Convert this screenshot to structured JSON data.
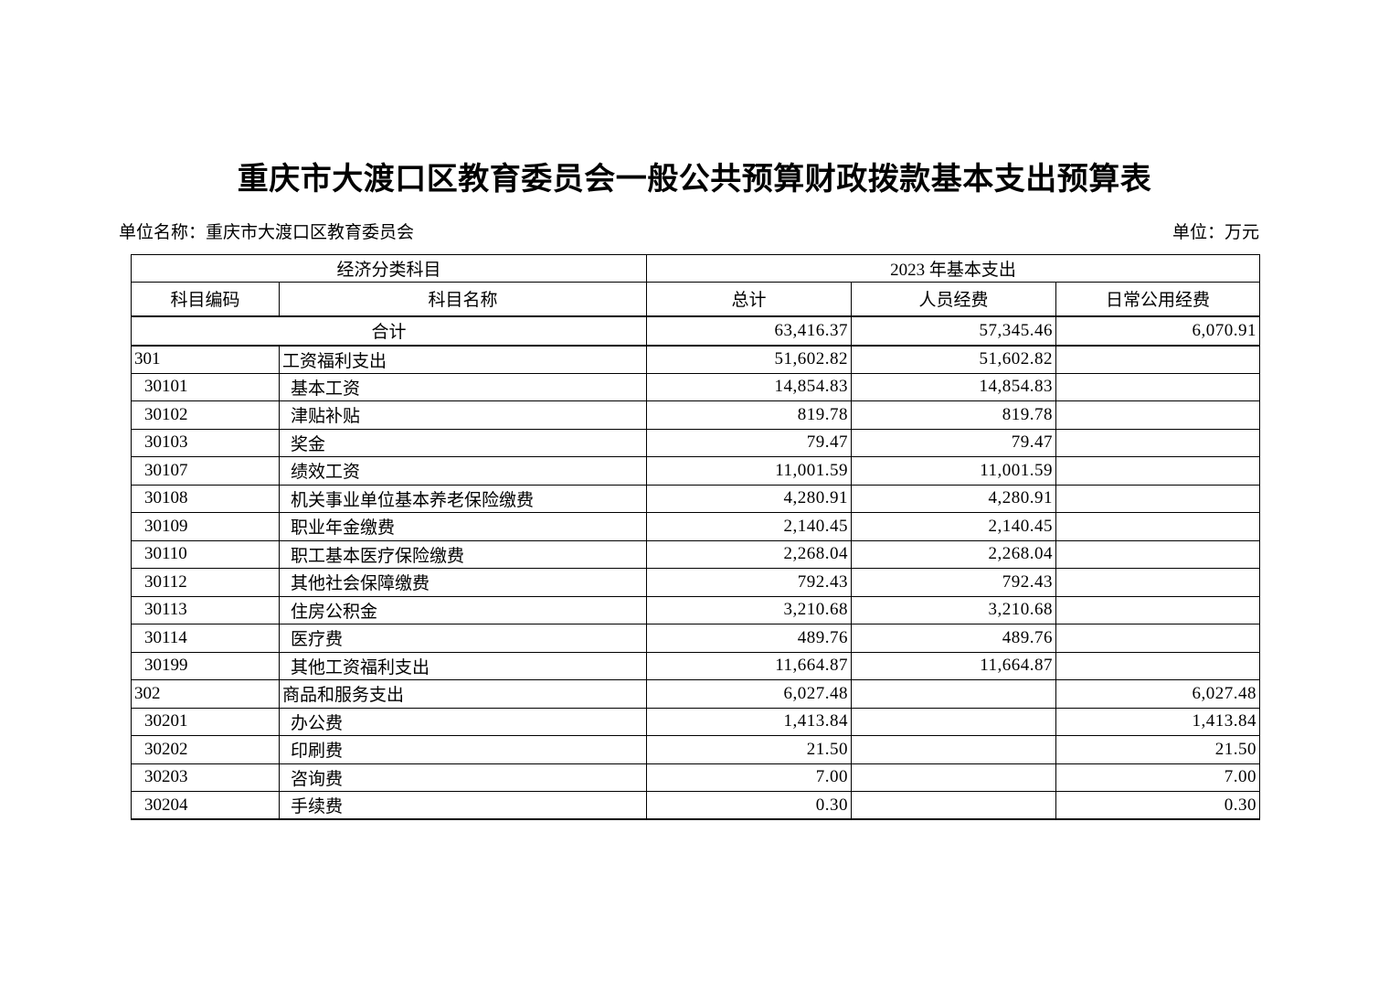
{
  "page": {
    "title": "重庆市大渡口区教育委员会一般公共预算财政拨款基本支出预算表",
    "unit_name_label": "单位名称：重庆市大渡口区教育委员会",
    "unit_label": "单位：万元"
  },
  "table": {
    "header": {
      "group_left": "经济分类科目",
      "group_right": "2023 年基本支出",
      "columns": [
        "科目编码",
        "科目名称",
        "总计",
        "人员经费",
        "日常公用经费"
      ]
    },
    "total_row": {
      "label": "合计",
      "total": "63,416.37",
      "personnel": "57,345.46",
      "daily_public": "6,070.91"
    },
    "rows": [
      {
        "code": "301",
        "name": "工资福利支出",
        "total": "51,602.82",
        "personnel": "51,602.82",
        "daily_public": "",
        "level": 1
      },
      {
        "code": "30101",
        "name": "基本工资",
        "total": "14,854.83",
        "personnel": "14,854.83",
        "daily_public": "",
        "level": 2
      },
      {
        "code": "30102",
        "name": "津贴补贴",
        "total": "819.78",
        "personnel": "819.78",
        "daily_public": "",
        "level": 2
      },
      {
        "code": "30103",
        "name": "奖金",
        "total": "79.47",
        "personnel": "79.47",
        "daily_public": "",
        "level": 2
      },
      {
        "code": "30107",
        "name": "绩效工资",
        "total": "11,001.59",
        "personnel": "11,001.59",
        "daily_public": "",
        "level": 2
      },
      {
        "code": "30108",
        "name": "机关事业单位基本养老保险缴费",
        "total": "4,280.91",
        "personnel": "4,280.91",
        "daily_public": "",
        "level": 2
      },
      {
        "code": "30109",
        "name": "职业年金缴费",
        "total": "2,140.45",
        "personnel": "2,140.45",
        "daily_public": "",
        "level": 2
      },
      {
        "code": "30110",
        "name": "职工基本医疗保险缴费",
        "total": "2,268.04",
        "personnel": "2,268.04",
        "daily_public": "",
        "level": 2
      },
      {
        "code": "30112",
        "name": "其他社会保障缴费",
        "total": "792.43",
        "personnel": "792.43",
        "daily_public": "",
        "level": 2
      },
      {
        "code": "30113",
        "name": "住房公积金",
        "total": "3,210.68",
        "personnel": "3,210.68",
        "daily_public": "",
        "level": 2
      },
      {
        "code": "30114",
        "name": "医疗费",
        "total": "489.76",
        "personnel": "489.76",
        "daily_public": "",
        "level": 2
      },
      {
        "code": "30199",
        "name": "其他工资福利支出",
        "total": "11,664.87",
        "personnel": "11,664.87",
        "daily_public": "",
        "level": 2
      },
      {
        "code": "302",
        "name": "商品和服务支出",
        "total": "6,027.48",
        "personnel": "",
        "daily_public": "6,027.48",
        "level": 1
      },
      {
        "code": "30201",
        "name": "办公费",
        "total": "1,413.84",
        "personnel": "",
        "daily_public": "1,413.84",
        "level": 2
      },
      {
        "code": "30202",
        "name": "印刷费",
        "total": "21.50",
        "personnel": "",
        "daily_public": "21.50",
        "level": 2
      },
      {
        "code": "30203",
        "name": "咨询费",
        "total": "7.00",
        "personnel": "",
        "daily_public": "7.00",
        "level": 2
      },
      {
        "code": "30204",
        "name": "手续费",
        "total": "0.30",
        "personnel": "",
        "daily_public": "0.30",
        "level": 2
      }
    ]
  }
}
